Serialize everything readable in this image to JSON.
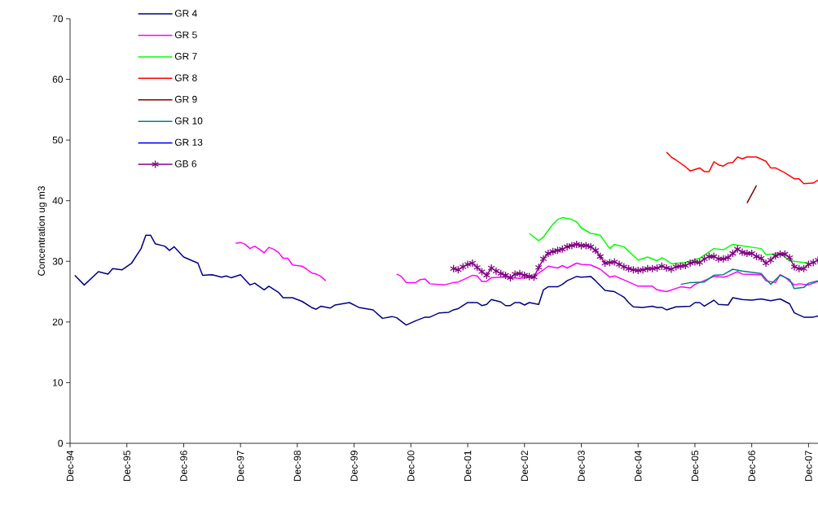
{
  "chart_data": {
    "type": "line",
    "ylabel": "Concentration ug m3",
    "xlim": [
      "1994-12",
      "2008-02"
    ],
    "ylim": [
      0,
      70
    ],
    "xticks": [
      {
        "value": "1994-12",
        "label": "Dec-94"
      },
      {
        "value": "1995-12",
        "label": "Dec-95"
      },
      {
        "value": "1996-12",
        "label": "Dec-96"
      },
      {
        "value": "1997-12",
        "label": "Dec-97"
      },
      {
        "value": "1998-12",
        "label": "Dec-98"
      },
      {
        "value": "1999-12",
        "label": "Dec-99"
      },
      {
        "value": "2000-12",
        "label": "Dec-00"
      },
      {
        "value": "2001-12",
        "label": "Dec-01"
      },
      {
        "value": "2002-12",
        "label": "Dec-02"
      },
      {
        "value": "2003-12",
        "label": "Dec-03"
      },
      {
        "value": "2004-12",
        "label": "Dec-04"
      },
      {
        "value": "2005-12",
        "label": "Dec-05"
      },
      {
        "value": "2006-12",
        "label": "Dec-06"
      },
      {
        "value": "2007-12",
        "label": "Dec-07"
      }
    ],
    "yticks": [
      0,
      10,
      20,
      30,
      40,
      50,
      60,
      70
    ],
    "grid": false,
    "legend": "top left",
    "marker": "none",
    "line_style": "solid",
    "series": [
      {
        "name": "GR 4",
        "color": "#000080",
        "x": [
          "1995-01",
          "1995-03",
          "1995-06",
          "1995-08",
          "1995-09",
          "1995-11",
          "1996-01",
          "1996-03",
          "1996-04",
          "1996-05",
          "1996-06",
          "1996-08",
          "1996-09",
          "1996-10",
          "1996-12",
          "1997-03",
          "1997-04",
          "1997-06",
          "1997-08",
          "1997-09",
          "1997-10",
          "1997-12",
          "1998-02",
          "1998-03",
          "1998-05",
          "1998-06",
          "1998-08",
          "1998-09",
          "1998-11",
          "1999-01",
          "1999-03",
          "1999-04",
          "1999-05",
          "1999-07",
          "1999-08",
          "1999-11",
          "2000-01",
          "2000-04",
          "2000-06",
          "2000-08",
          "2000-09",
          "2000-11",
          "2001-01",
          "2001-03",
          "2001-04",
          "2001-06",
          "2001-08",
          "2001-09",
          "2001-10",
          "2001-12",
          "2002-02",
          "2002-03",
          "2002-04",
          "2002-05",
          "2002-07",
          "2002-08",
          "2002-09",
          "2002-10",
          "2002-11",
          "2002-12",
          "2003-01",
          "2003-03",
          "2003-04",
          "2003-05",
          "2003-07",
          "2003-08",
          "2003-09",
          "2003-11",
          "2003-12",
          "2004-02",
          "2004-03",
          "2004-05",
          "2004-07",
          "2004-09",
          "2004-10",
          "2004-11",
          "2005-01",
          "2005-03",
          "2005-04",
          "2005-05",
          "2005-06",
          "2005-08",
          "2005-11",
          "2005-12",
          "2006-01",
          "2006-02",
          "2006-04",
          "2006-05",
          "2006-07",
          "2006-08",
          "2006-10",
          "2006-12",
          "2007-02",
          "2007-04",
          "2007-06",
          "2007-08",
          "2007-09",
          "2007-11",
          "2008-01",
          "2008-02"
        ],
        "values": [
          27.7,
          26.1,
          28.3,
          27.9,
          28.8,
          28.6,
          29.7,
          32.1,
          34.3,
          34.3,
          32.9,
          32.5,
          31.8,
          32.4,
          30.7,
          29.7,
          27.7,
          27.8,
          27.4,
          27.6,
          27.3,
          27.8,
          26.1,
          26.4,
          25.3,
          25.9,
          24.9,
          24.0,
          24.0,
          23.4,
          22.4,
          22.1,
          22.6,
          22.3,
          22.8,
          23.2,
          22.4,
          22.0,
          20.6,
          20.9,
          20.7,
          19.5,
          20.2,
          20.8,
          20.8,
          21.5,
          21.6,
          22.0,
          22.2,
          23.2,
          23.2,
          22.7,
          22.9,
          23.7,
          23.3,
          22.7,
          22.7,
          23.2,
          23.2,
          22.8,
          23.2,
          22.9,
          25.3,
          25.8,
          25.8,
          26.2,
          26.8,
          27.5,
          27.4,
          27.5,
          26.8,
          25.2,
          25.0,
          24.1,
          23.2,
          22.5,
          22.4,
          22.6,
          22.4,
          22.4,
          22.0,
          22.5,
          22.6,
          23.2,
          23.2,
          22.6,
          23.6,
          22.9,
          22.8,
          24.0,
          23.7,
          23.6,
          23.8,
          23.5,
          23.8,
          23.0,
          21.5,
          20.8,
          20.8,
          21.0
        ]
      },
      {
        "name": "GR 5",
        "color": "#ff00ff",
        "x": [
          "1997-11",
          "1997-12",
          "1998-01",
          "1998-02",
          "1998-03",
          "1998-04",
          "1998-05",
          "1998-06",
          "1998-07",
          "1998-08",
          "1998-09",
          "1998-10",
          "1998-11",
          "1998-12",
          "1999-01",
          "1999-02",
          "1999-03",
          "1999-04",
          "1999-05",
          "1999-06",
          "1999-09",
          "2000-09",
          "2000-10",
          "2000-11",
          "2001-01",
          "2001-02",
          "2001-03",
          "2001-04",
          "2001-07",
          "2001-09",
          "2001-10",
          "2001-12",
          "2002-01",
          "2002-02",
          "2002-03",
          "2002-04",
          "2002-05",
          "2002-07",
          "2002-08",
          "2002-11",
          "2003-02",
          "2003-04",
          "2003-05",
          "2003-07",
          "2003-08",
          "2003-09",
          "2003-10",
          "2003-11",
          "2003-12",
          "2004-02",
          "2004-04",
          "2004-06",
          "2004-07",
          "2004-10",
          "2004-12",
          "2005-03",
          "2005-04",
          "2005-06",
          "2005-09",
          "2005-11",
          "2005-12",
          "2006-01",
          "2006-04",
          "2006-06",
          "2006-07",
          "2006-09",
          "2006-10",
          "2007-02",
          "2007-03",
          "2007-05",
          "2007-06",
          "2007-07",
          "2007-09",
          "2007-10",
          "2007-12",
          "2008-02"
        ],
        "values": [
          33.0,
          33.1,
          32.8,
          32.1,
          32.5,
          32.0,
          31.4,
          32.3,
          32.0,
          31.5,
          30.5,
          30.5,
          29.4,
          29.3,
          29.2,
          28.7,
          28.1,
          27.9,
          27.5,
          26.8,
          null,
          27.9,
          27.5,
          26.5,
          26.5,
          27.0,
          27.1,
          26.3,
          26.1,
          26.5,
          26.6,
          27.3,
          27.7,
          27.6,
          26.7,
          26.7,
          27.3,
          27.4,
          27.4,
          27.2,
          27.5,
          28.6,
          29.2,
          28.9,
          29.3,
          28.9,
          29.3,
          29.7,
          29.5,
          29.4,
          28.7,
          27.4,
          27.6,
          26.6,
          25.9,
          25.9,
          25.3,
          25.0,
          25.8,
          25.6,
          26.2,
          26.5,
          27.5,
          27.4,
          27.6,
          28.3,
          27.9,
          27.8,
          26.8,
          26.5,
          27.8,
          27.4,
          26.1,
          26.3,
          26.1,
          26.7
        ]
      },
      {
        "name": "GR 7",
        "color": "#00ff00",
        "x": [
          "2003-01",
          "2003-03",
          "2003-04",
          "2003-05",
          "2003-06",
          "2003-07",
          "2003-08",
          "2003-10",
          "2003-11",
          "2003-12",
          "2004-02",
          "2004-03",
          "2004-04",
          "2004-06",
          "2004-07",
          "2004-09",
          "2004-12",
          "2005-02",
          "2005-04",
          "2005-05",
          "2005-06",
          "2005-07",
          "2005-10",
          "2006-01",
          "2006-04",
          "2006-06",
          "2006-08",
          "2007-02",
          "2007-03",
          "2007-06",
          "2007-08",
          "2007-10",
          "2007-12"
        ],
        "values": [
          34.6,
          33.4,
          34.0,
          35.1,
          36.1,
          36.9,
          37.2,
          36.9,
          36.5,
          35.5,
          34.6,
          34.5,
          34.3,
          32.1,
          32.8,
          32.4,
          30.2,
          30.7,
          30.1,
          30.6,
          30.2,
          29.6,
          29.8,
          30.5,
          32.1,
          31.9,
          32.8,
          32.1,
          31.1,
          31.3,
          30.1,
          29.9,
          29.7
        ]
      },
      {
        "name": "GR 8",
        "color": "#ff0000",
        "x": [
          "2005-06",
          "2005-07",
          "2005-08",
          "2005-10",
          "2005-11",
          "2006-01",
          "2006-02",
          "2006-03",
          "2006-04",
          "2006-05",
          "2006-06",
          "2006-07",
          "2006-08",
          "2006-09",
          "2006-10",
          "2006-11",
          "2007-01",
          "2007-03",
          "2007-04",
          "2007-05",
          "2007-07",
          "2007-09",
          "2007-10",
          "2007-11",
          "2008-01",
          "2008-02"
        ],
        "values": [
          48.0,
          47.2,
          46.7,
          45.6,
          44.9,
          45.4,
          44.8,
          44.8,
          46.4,
          45.9,
          45.7,
          46.2,
          46.3,
          47.2,
          46.9,
          47.2,
          47.2,
          46.5,
          45.4,
          45.4,
          44.6,
          43.6,
          43.6,
          42.8,
          42.9,
          43.4
        ]
      },
      {
        "name": "GR 9",
        "color": "#800000",
        "x": [
          "2006-11",
          "2007-01"
        ],
        "values": [
          39.6,
          42.5
        ]
      },
      {
        "name": "GR 10",
        "color": "#008080",
        "x": [
          "2005-09",
          "2005-11",
          "2006-02",
          "2006-04",
          "2006-06",
          "2006-08",
          "2006-10",
          "2007-02",
          "2007-04",
          "2007-06",
          "2007-08",
          "2007-09",
          "2007-11",
          "2007-12",
          "2008-02"
        ],
        "values": [
          26.2,
          26.5,
          26.6,
          27.7,
          27.8,
          28.7,
          28.4,
          28.0,
          26.2,
          27.7,
          27.0,
          25.5,
          25.7,
          26.4,
          26.8
        ]
      },
      {
        "name": "GR 13",
        "color": "#0000ff"
      },
      {
        "name": "GB 6",
        "color": "#800080",
        "marker": "cross",
        "x": [
          "2001-09",
          "2001-10",
          "2001-11",
          "2001-12",
          "2002-01",
          "2002-02",
          "2002-03",
          "2002-04",
          "2002-05",
          "2002-06",
          "2002-07",
          "2002-08",
          "2002-09",
          "2002-10",
          "2002-11",
          "2002-12",
          "2003-01",
          "2003-02",
          "2003-03",
          "2003-04",
          "2003-05",
          "2003-06",
          "2003-07",
          "2003-08",
          "2003-09",
          "2003-10",
          "2003-11",
          "2003-12",
          "2004-01",
          "2004-02",
          "2004-03",
          "2004-04",
          "2004-05",
          "2004-06",
          "2004-07",
          "2004-08",
          "2004-09",
          "2004-10",
          "2004-11",
          "2004-12",
          "2005-01",
          "2005-02",
          "2005-03",
          "2005-04",
          "2005-05",
          "2005-06",
          "2005-07",
          "2005-08",
          "2005-09",
          "2005-10",
          "2005-11",
          "2005-12",
          "2006-01",
          "2006-02",
          "2006-03",
          "2006-04",
          "2006-05",
          "2006-06",
          "2006-07",
          "2006-08",
          "2006-09",
          "2006-10",
          "2006-11",
          "2006-12",
          "2007-01",
          "2007-02",
          "2007-03",
          "2007-04",
          "2007-05",
          "2007-06",
          "2007-07",
          "2007-08",
          "2007-09",
          "2007-10",
          "2007-11",
          "2007-12",
          "2008-01",
          "2008-02"
        ],
        "values": [
          28.8,
          28.6,
          29.1,
          29.5,
          29.7,
          29.0,
          28.3,
          27.7,
          28.9,
          28.4,
          28.0,
          27.7,
          27.3,
          27.9,
          28.0,
          27.7,
          27.5,
          27.4,
          29.0,
          30.4,
          31.3,
          31.6,
          31.8,
          32.0,
          32.4,
          32.6,
          32.8,
          32.6,
          32.6,
          32.4,
          31.8,
          30.8,
          29.7,
          29.8,
          29.9,
          29.5,
          29.1,
          28.8,
          28.6,
          28.5,
          28.6,
          28.8,
          28.8,
          28.9,
          29.2,
          28.9,
          28.7,
          29.1,
          29.2,
          29.3,
          29.7,
          29.9,
          29.8,
          30.4,
          30.8,
          30.8,
          30.4,
          30.4,
          30.6,
          31.3,
          32.0,
          31.5,
          31.3,
          31.3,
          30.8,
          30.5,
          29.7,
          30.2,
          30.9,
          31.2,
          31.2,
          30.6,
          29.1,
          28.8,
          28.8,
          29.5,
          29.8,
          30.2
        ]
      }
    ]
  }
}
